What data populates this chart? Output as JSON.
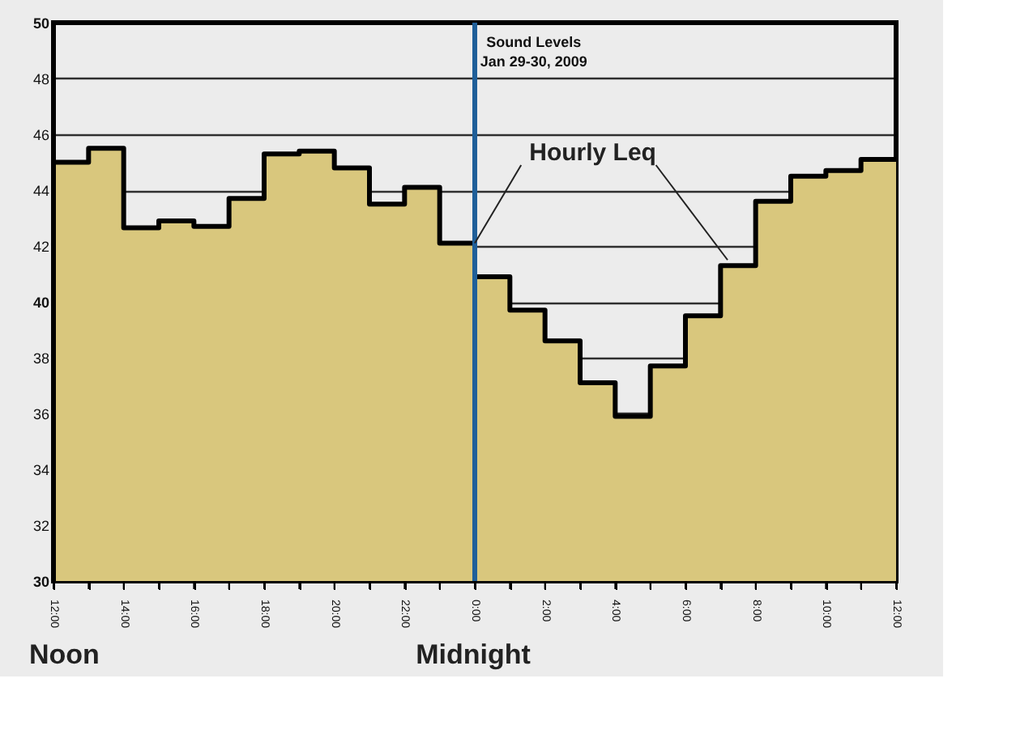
{
  "chart_data": {
    "type": "area",
    "title": "Sound Levels",
    "subtitle": "Jan 29-30, 2009",
    "x": [
      "2009-01-29T12:00",
      "2009-01-29T13:00",
      "2009-01-29T14:00",
      "2009-01-29T15:00",
      "2009-01-29T16:00",
      "2009-01-29T17:00",
      "2009-01-29T18:00",
      "2009-01-29T19:00",
      "2009-01-29T20:00",
      "2009-01-29T21:00",
      "2009-01-29T22:00",
      "2009-01-29T23:00",
      "2009-01-30T00:00",
      "2009-01-30T01:00",
      "2009-01-30T02:00",
      "2009-01-30T03:00",
      "2009-01-30T04:00",
      "2009-01-30T05:00",
      "2009-01-30T06:00",
      "2009-01-30T07:00",
      "2009-01-30T08:00",
      "2009-01-30T09:00",
      "2009-01-30T10:00",
      "2009-01-30T11:00"
    ],
    "series": [
      {
        "color": "#d9c77d",
        "values": [
          45.0,
          45.5,
          42.65,
          42.9,
          42.7,
          43.7,
          45.3,
          45.4,
          44.8,
          43.5,
          44.1,
          42.1,
          40.9,
          39.7,
          38.6,
          37.1,
          35.9,
          37.7,
          39.5,
          41.3,
          43.6,
          44.5,
          44.7,
          45.1
        ]
      }
    ],
    "xlim": [
      "2009-01-29T12:00",
      "2009-01-30T12:00"
    ],
    "xticks": [
      {
        "value": "2009-01-29T12:00",
        "label": "12:00"
      },
      {
        "value": "2009-01-29T13:00",
        "label": null
      },
      {
        "value": "2009-01-29T14:00",
        "label": "14:00"
      },
      {
        "value": "2009-01-29T15:00",
        "label": null
      },
      {
        "value": "2009-01-29T16:00",
        "label": "16:00"
      },
      {
        "value": "2009-01-29T17:00",
        "label": null
      },
      {
        "value": "2009-01-29T18:00",
        "label": "18:00"
      },
      {
        "value": "2009-01-29T19:00",
        "label": null
      },
      {
        "value": "2009-01-29T20:00",
        "label": "20:00"
      },
      {
        "value": "2009-01-29T21:00",
        "label": null
      },
      {
        "value": "2009-01-29T22:00",
        "label": "22:00"
      },
      {
        "value": "2009-01-29T23:00",
        "label": null
      },
      {
        "value": "2009-01-30T00:00",
        "label": "0:00"
      },
      {
        "value": "2009-01-30T01:00",
        "label": null
      },
      {
        "value": "2009-01-30T02:00",
        "label": "2:00"
      },
      {
        "value": "2009-01-30T03:00",
        "label": null
      },
      {
        "value": "2009-01-30T04:00",
        "label": "4:00"
      },
      {
        "value": "2009-01-30T05:00",
        "label": null
      },
      {
        "value": "2009-01-30T06:00",
        "label": "6:00"
      },
      {
        "value": "2009-01-30T07:00",
        "label": null
      },
      {
        "value": "2009-01-30T08:00",
        "label": "8:00"
      },
      {
        "value": "2009-01-30T09:00",
        "label": null
      },
      {
        "value": "2009-01-30T10:00",
        "label": "10:00"
      },
      {
        "value": "2009-01-30T11:00",
        "label": null
      },
      {
        "value": "2009-01-30T12:00",
        "label": "12:00"
      }
    ],
    "ylim": [
      30,
      50
    ],
    "yticks": [
      30,
      32,
      34,
      36,
      38,
      40,
      42,
      44,
      46,
      48,
      50
    ],
    "grid": "y",
    "ref_lines": [
      {
        "axis": "x",
        "value": "2009-01-30T00:00",
        "color": "#1f5f99"
      }
    ],
    "annotations": [
      {
        "text": "Hourly Leq",
        "x": "2009-01-30T00:00",
        "y": 42.1
      },
      "Noon",
      "Midnight"
    ]
  }
}
